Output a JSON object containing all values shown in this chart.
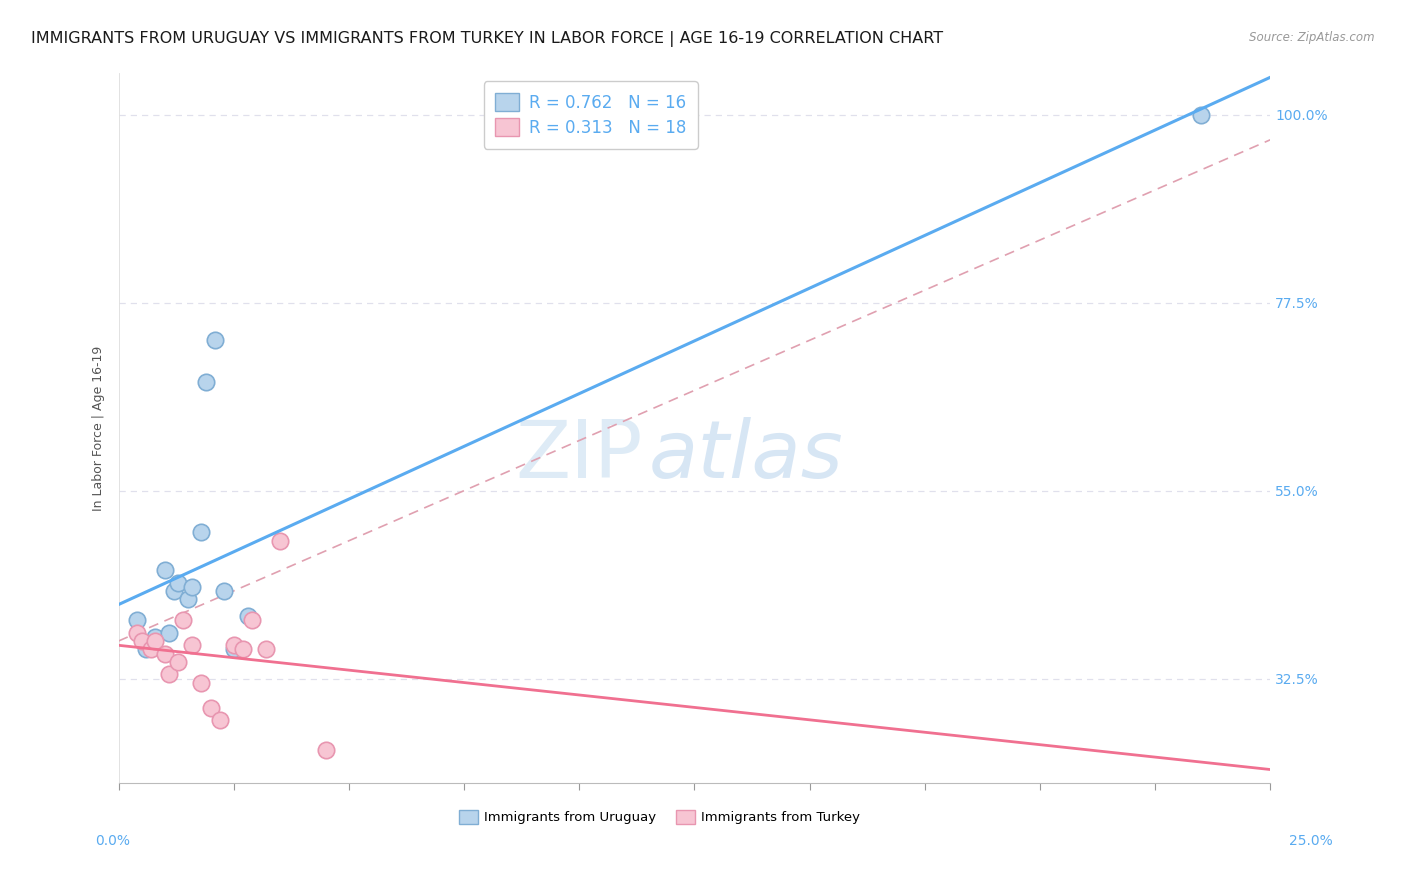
{
  "title": "IMMIGRANTS FROM URUGUAY VS IMMIGRANTS FROM TURKEY IN LABOR FORCE | AGE 16-19 CORRELATION CHART",
  "source": "Source: ZipAtlas.com",
  "ylabel": "In Labor Force | Age 16-19",
  "ytick_values": [
    0.325,
    0.55,
    0.775,
    1.0
  ],
  "xlim": [
    0.0,
    0.25
  ],
  "ylim": [
    0.2,
    1.05
  ],
  "uruguay_color": "#b8d4ec",
  "turkey_color": "#f7c5d3",
  "uruguay_edge": "#80aed4",
  "turkey_edge": "#e896b0",
  "regression_blue": "#5aabf0",
  "regression_pink": "#f07090",
  "dashed_color": "#e0a0b0",
  "uruguay_R": 0.762,
  "uruguay_N": 16,
  "turkey_R": 0.313,
  "turkey_N": 18,
  "tick_color": "#5aabf0",
  "background_color": "#ffffff",
  "grid_color": "#e0e0ec",
  "title_fontsize": 11.5,
  "axis_label_fontsize": 9,
  "tick_fontsize": 10,
  "legend_fontsize": 12,
  "uruguay_x": [
    0.004,
    0.006,
    0.008,
    0.01,
    0.011,
    0.012,
    0.013,
    0.015,
    0.016,
    0.018,
    0.019,
    0.021,
    0.023,
    0.025,
    0.028,
    0.235
  ],
  "uruguay_y": [
    0.395,
    0.36,
    0.375,
    0.455,
    0.38,
    0.43,
    0.44,
    0.42,
    0.435,
    0.5,
    0.68,
    0.73,
    0.43,
    0.36,
    0.4,
    1.0
  ],
  "turkey_x": [
    0.004,
    0.005,
    0.007,
    0.008,
    0.01,
    0.011,
    0.013,
    0.014,
    0.016,
    0.018,
    0.02,
    0.022,
    0.025,
    0.027,
    0.029,
    0.032,
    0.035,
    0.045
  ],
  "turkey_y": [
    0.38,
    0.37,
    0.36,
    0.37,
    0.355,
    0.33,
    0.345,
    0.395,
    0.365,
    0.32,
    0.29,
    0.275,
    0.365,
    0.36,
    0.395,
    0.36,
    0.49,
    0.24
  ],
  "watermark_zip": "ZIP",
  "watermark_atlas": "atlas",
  "bottom_legend_labels": [
    "Immigrants from Uruguay",
    "Immigrants from Turkey"
  ]
}
